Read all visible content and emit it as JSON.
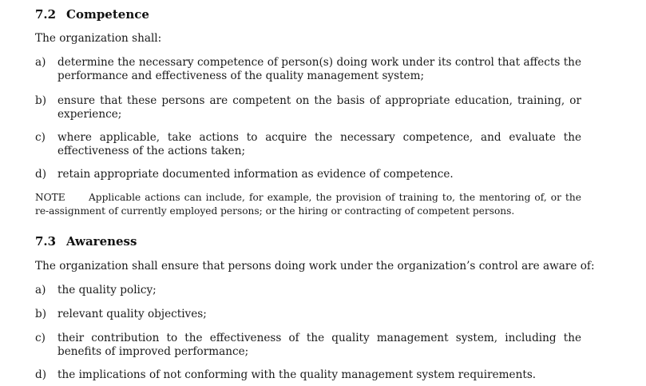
{
  "section_72": {
    "number": "7.2",
    "title": "Competence",
    "intro": "The organization shall:",
    "items": [
      {
        "marker": "a)",
        "text": "determine the necessary competence of person(s) doing work under its control that affects the performance and effectiveness of the quality management system;"
      },
      {
        "marker": "b)",
        "text": "ensure that these persons are competent on the basis of appropriate education, training, or experience;"
      },
      {
        "marker": "c)",
        "text": "where applicable, take actions to acquire the necessary competence, and evaluate the effectiveness of the actions taken;"
      },
      {
        "marker": "d)",
        "text": "retain appropriate documented information as evidence of competence."
      }
    ],
    "note": {
      "label": "NOTE",
      "text": "Applicable actions can include, for example, the provision of training to, the mentoring of, or the re-assignment of currently employed persons; or the hiring or contracting of competent persons."
    }
  },
  "section_73": {
    "number": "7.3",
    "title": "Awareness",
    "intro": "The organization shall ensure that persons doing work under the organization’s control are aware of:",
    "items": [
      {
        "marker": "a)",
        "text": "the quality policy;"
      },
      {
        "marker": "b)",
        "text": "relevant quality objectives;"
      },
      {
        "marker": "c)",
        "text": "their contribution to the effectiveness of the quality management system, including the benefits of improved performance;"
      },
      {
        "marker": "d)",
        "text": "the implications of not conforming with the quality management system requirements."
      }
    ]
  }
}
